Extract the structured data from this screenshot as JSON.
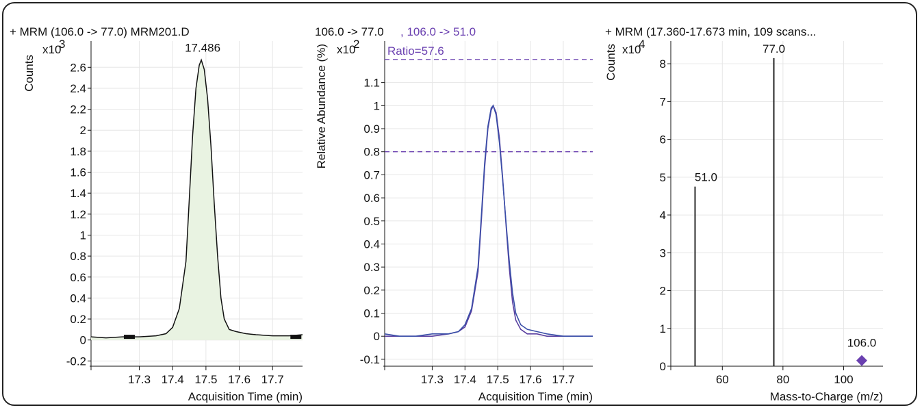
{
  "chart_data": [
    {
      "type": "area",
      "title": "+ MRM (106.0 -> 77.0) MRM201.D",
      "ylabel": "Counts",
      "y_multiplier": "x10",
      "y_exponent": "3",
      "xlabel": "Acquisition Time (min)",
      "peak_label": "17.486",
      "xlim": [
        17.155,
        17.79
      ],
      "ylim": [
        -0.25,
        2.85
      ],
      "x_ticks": [
        {
          "v": 17.3,
          "label": "17.3"
        },
        {
          "v": 17.4,
          "label": "17.4"
        },
        {
          "v": 17.5,
          "label": "17.5"
        },
        {
          "v": 17.6,
          "label": "17.6"
        },
        {
          "v": 17.7,
          "label": "17.7"
        }
      ],
      "y_ticks": [
        {
          "v": 2.6,
          "label": "2.6"
        },
        {
          "v": 2.4,
          "label": "2.4"
        },
        {
          "v": 2.2,
          "label": "2.2"
        },
        {
          "v": 2.0,
          "label": "2"
        },
        {
          "v": 1.8,
          "label": "1.8"
        },
        {
          "v": 1.6,
          "label": "1.6"
        },
        {
          "v": 1.4,
          "label": "1.4"
        },
        {
          "v": 1.2,
          "label": "1.2"
        },
        {
          "v": 1.0,
          "label": "1"
        },
        {
          "v": 0.8,
          "label": "0.8"
        },
        {
          "v": 0.6,
          "label": "0.6"
        },
        {
          "v": 0.4,
          "label": "0.4"
        },
        {
          "v": 0.2,
          "label": "0.2"
        },
        {
          "v": 0.0,
          "label": "0"
        },
        {
          "v": -0.2,
          "label": "-0.2"
        }
      ],
      "series": [
        {
          "color": "#111111",
          "fill": "#e9f3e2",
          "x": [
            17.155,
            17.2,
            17.25,
            17.3,
            17.35,
            17.38,
            17.4,
            17.42,
            17.44,
            17.45,
            17.46,
            17.47,
            17.48,
            17.486,
            17.495,
            17.505,
            17.515,
            17.525,
            17.535,
            17.545,
            17.555,
            17.57,
            17.59,
            17.62,
            17.65,
            17.7,
            17.75,
            17.79
          ],
          "y": [
            0.03,
            0.02,
            0.03,
            0.03,
            0.04,
            0.06,
            0.12,
            0.3,
            0.75,
            1.35,
            1.95,
            2.4,
            2.62,
            2.67,
            2.58,
            2.3,
            1.85,
            1.3,
            0.8,
            0.4,
            0.2,
            0.1,
            0.08,
            0.06,
            0.05,
            0.04,
            0.04,
            0.05
          ]
        }
      ],
      "integration_markers_x": [
        17.27,
        17.77
      ]
    },
    {
      "type": "line",
      "title_a": "106.0 -> 77.0",
      "title_b": ", 106.0 -> 51.0",
      "ylabel": "Relative Abundance (%)",
      "y_multiplier": "x10",
      "y_exponent": "2",
      "xlabel": "Acquisition Time (min)",
      "annotation": "Ratio=57.6",
      "xlim": [
        17.155,
        17.79
      ],
      "ylim": [
        -0.13,
        1.28
      ],
      "ratio_limits": [
        0.8,
        1.2
      ],
      "x_ticks": [
        {
          "v": 17.3,
          "label": "17.3"
        },
        {
          "v": 17.4,
          "label": "17.4"
        },
        {
          "v": 17.5,
          "label": "17.5"
        },
        {
          "v": 17.6,
          "label": "17.6"
        },
        {
          "v": 17.7,
          "label": "17.7"
        }
      ],
      "y_ticks": [
        {
          "v": 1.1,
          "label": "1.1"
        },
        {
          "v": 1.0,
          "label": "1"
        },
        {
          "v": 0.9,
          "label": "0.9"
        },
        {
          "v": 0.8,
          "label": "0.8"
        },
        {
          "v": 0.7,
          "label": "0.7"
        },
        {
          "v": 0.6,
          "label": "0.6"
        },
        {
          "v": 0.5,
          "label": "0.5"
        },
        {
          "v": 0.4,
          "label": "0.4"
        },
        {
          "v": 0.3,
          "label": "0.3"
        },
        {
          "v": 0.2,
          "label": "0.2"
        },
        {
          "v": 0.1,
          "label": "0.1"
        },
        {
          "v": 0.0,
          "label": "0"
        },
        {
          "v": -0.1,
          "label": "-0.1"
        }
      ],
      "series": [
        {
          "color": "#5a3fa0",
          "x": [
            17.155,
            17.2,
            17.25,
            17.3,
            17.35,
            17.38,
            17.4,
            17.42,
            17.44,
            17.45,
            17.46,
            17.47,
            17.48,
            17.486,
            17.495,
            17.505,
            17.515,
            17.525,
            17.535,
            17.545,
            17.555,
            17.57,
            17.59,
            17.62,
            17.65,
            17.7,
            17.75,
            17.79
          ],
          "y": [
            0.0,
            0.0,
            0.0,
            0.0,
            0.01,
            0.02,
            0.04,
            0.11,
            0.28,
            0.5,
            0.73,
            0.9,
            0.98,
            1.0,
            0.97,
            0.86,
            0.69,
            0.49,
            0.3,
            0.15,
            0.07,
            0.03,
            0.01,
            0.01,
            0.0,
            0.0,
            0.0,
            0.0
          ]
        },
        {
          "color": "#3a4fa8",
          "x": [
            17.155,
            17.2,
            17.25,
            17.3,
            17.35,
            17.38,
            17.4,
            17.42,
            17.44,
            17.45,
            17.46,
            17.47,
            17.48,
            17.486,
            17.495,
            17.505,
            17.515,
            17.525,
            17.535,
            17.545,
            17.555,
            17.57,
            17.59,
            17.62,
            17.65,
            17.7,
            17.75,
            17.79
          ],
          "y": [
            0.01,
            0.0,
            0.0,
            0.01,
            0.01,
            0.02,
            0.05,
            0.12,
            0.3,
            0.52,
            0.75,
            0.91,
            0.99,
            1.0,
            0.96,
            0.84,
            0.68,
            0.5,
            0.33,
            0.19,
            0.1,
            0.05,
            0.03,
            0.02,
            0.01,
            0.0,
            0.0,
            0.0
          ]
        }
      ]
    },
    {
      "type": "bar",
      "title": "+ MRM  (17.360-17.673 min, 109  scans...",
      "ylabel": "Counts",
      "y_multiplier": "x10",
      "y_exponent": "4",
      "xlabel": "Mass-to-Charge (m/z)",
      "xlim": [
        43,
        113
      ],
      "ylim": [
        0,
        8.6
      ],
      "x_ticks": [
        {
          "v": 60,
          "label": "60"
        },
        {
          "v": 80,
          "label": "80"
        },
        {
          "v": 100,
          "label": "100"
        }
      ],
      "y_ticks": [
        {
          "v": 8,
          "label": "8"
        },
        {
          "v": 7,
          "label": "7"
        },
        {
          "v": 6,
          "label": "6"
        },
        {
          "v": 5,
          "label": "5"
        },
        {
          "v": 4,
          "label": "4"
        },
        {
          "v": 3,
          "label": "3"
        },
        {
          "v": 2,
          "label": "2"
        },
        {
          "v": 1,
          "label": "1"
        },
        {
          "v": 0,
          "label": "0"
        }
      ],
      "peaks": [
        {
          "mz": 51.0,
          "value": 4.75,
          "label": "51.0"
        },
        {
          "mz": 77.0,
          "value": 8.15,
          "label": "77.0"
        }
      ],
      "precursor": {
        "mz": 106.0,
        "value": 0.15,
        "label": "106.0",
        "color": "#6a40b0"
      }
    }
  ]
}
